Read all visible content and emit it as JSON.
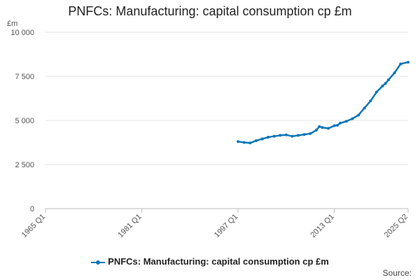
{
  "chart_data": {
    "type": "line",
    "title": "PNFCs: Manufacturing: capital consumption cp £m",
    "ylabel": "£m",
    "xlabel": "",
    "ylim": [
      0,
      10000
    ],
    "y_ticks": [
      0,
      2500,
      5000,
      7500,
      10000
    ],
    "y_tick_labels": [
      "0",
      "2 500",
      "5 000",
      "7 500",
      "10 000"
    ],
    "x_tick_labels": [
      "1965 Q1",
      "1981 Q1",
      "1997 Q1",
      "2013 Q1",
      "2025 Q2"
    ],
    "x_range": [
      "1965 Q1",
      "2025 Q2"
    ],
    "grid": true,
    "legend_position": "bottom",
    "series": [
      {
        "name": "PNFCs: Manufacturing: capital consumption cp £m",
        "color": "#0c77b8",
        "x": [
          "1997 Q1",
          "1998 Q1",
          "1999 Q1",
          "2000 Q1",
          "2001 Q1",
          "2002 Q1",
          "2003 Q1",
          "2004 Q1",
          "2005 Q1",
          "2006 Q1",
          "2007 Q1",
          "2008 Q1",
          "2009 Q1",
          "2010 Q1",
          "2010 Q3",
          "2011 Q1",
          "2012 Q1",
          "2013 Q1",
          "2013 Q3",
          "2014 Q1",
          "2015 Q1",
          "2016 Q1",
          "2017 Q1",
          "2018 Q1",
          "2019 Q1",
          "2020 Q1",
          "2021 Q1",
          "2021 Q3",
          "2022 Q1",
          "2023 Q1",
          "2024 Q1",
          "2025 Q2"
        ],
        "values": [
          3800,
          3750,
          3720,
          3850,
          3950,
          4050,
          4100,
          4150,
          4180,
          4100,
          4150,
          4200,
          4250,
          4450,
          4650,
          4600,
          4550,
          4700,
          4720,
          4850,
          4950,
          5100,
          5300,
          5700,
          6100,
          6600,
          6950,
          7100,
          7300,
          7700,
          8200,
          8300
        ]
      }
    ]
  },
  "source_label": "Source:"
}
